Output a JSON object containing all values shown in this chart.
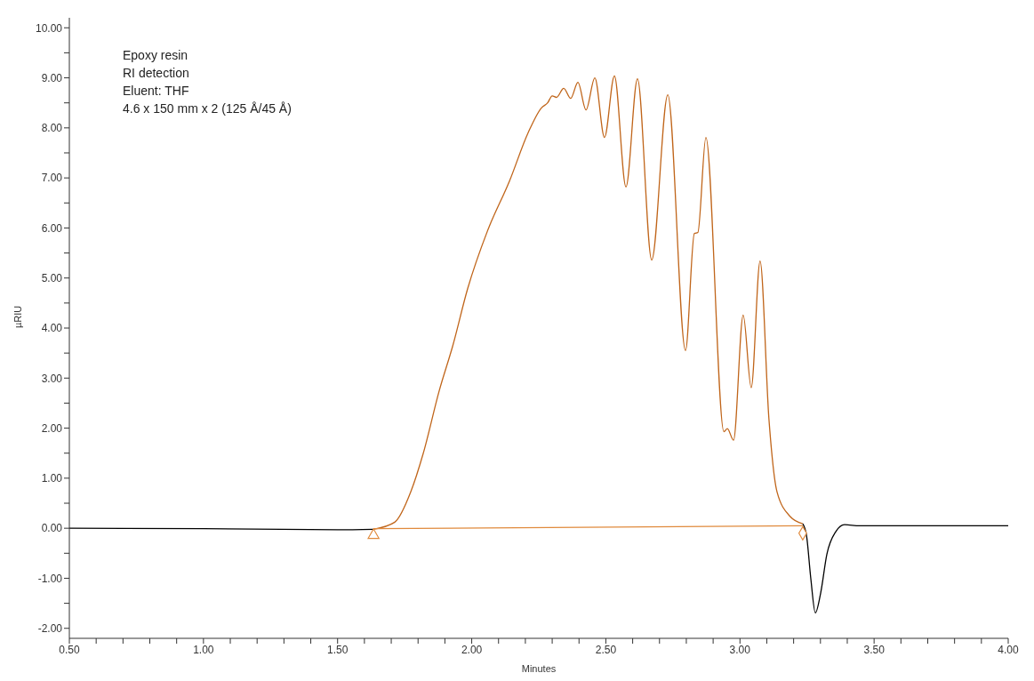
{
  "chart_data": {
    "type": "line",
    "xlabel": "Minutes",
    "ylabel": "µRIU",
    "annotations": [
      "Epoxy resin",
      "RI detection",
      "Eluent: THF",
      "4.6 x 150 mm x 2 (125 Å/45 Å)"
    ],
    "xlim": [
      0.5,
      4.0
    ],
    "ylim": [
      -2.2,
      10.2
    ],
    "xticks": [
      {
        "value": 0.5,
        "label": "0.50"
      },
      {
        "value": 0.6,
        "label": null
      },
      {
        "value": 0.7,
        "label": null
      },
      {
        "value": 0.8,
        "label": null
      },
      {
        "value": 0.9,
        "label": null
      },
      {
        "value": 1.0,
        "label": "1.00"
      },
      {
        "value": 1.1,
        "label": null
      },
      {
        "value": 1.2,
        "label": null
      },
      {
        "value": 1.3,
        "label": null
      },
      {
        "value": 1.4,
        "label": null
      },
      {
        "value": 1.5,
        "label": "1.50"
      },
      {
        "value": 1.6,
        "label": null
      },
      {
        "value": 1.7,
        "label": null
      },
      {
        "value": 1.8,
        "label": null
      },
      {
        "value": 1.9,
        "label": null
      },
      {
        "value": 2.0,
        "label": "2.00"
      },
      {
        "value": 2.1,
        "label": null
      },
      {
        "value": 2.2,
        "label": null
      },
      {
        "value": 2.3,
        "label": null
      },
      {
        "value": 2.4,
        "label": null
      },
      {
        "value": 2.5,
        "label": "2.50"
      },
      {
        "value": 2.6,
        "label": null
      },
      {
        "value": 2.7,
        "label": null
      },
      {
        "value": 2.8,
        "label": null
      },
      {
        "value": 2.9,
        "label": null
      },
      {
        "value": 3.0,
        "label": "3.00"
      },
      {
        "value": 3.1,
        "label": null
      },
      {
        "value": 3.2,
        "label": null
      },
      {
        "value": 3.3,
        "label": null
      },
      {
        "value": 3.4,
        "label": null
      },
      {
        "value": 3.5,
        "label": "3.50"
      },
      {
        "value": 3.6,
        "label": null
      },
      {
        "value": 3.7,
        "label": null
      },
      {
        "value": 3.8,
        "label": null
      },
      {
        "value": 3.9,
        "label": null
      },
      {
        "value": 4.0,
        "label": "4.00"
      }
    ],
    "yticks": [
      {
        "value": -2,
        "label": "-2.00"
      },
      {
        "value": -1.5,
        "label": null
      },
      {
        "value": -1,
        "label": "-1.00"
      },
      {
        "value": -0.5,
        "label": null
      },
      {
        "value": 0,
        "label": "0.00"
      },
      {
        "value": 0.5,
        "label": null
      },
      {
        "value": 1,
        "label": "1.00"
      },
      {
        "value": 1.5,
        "label": null
      },
      {
        "value": 2,
        "label": "2.00"
      },
      {
        "value": 2.5,
        "label": null
      },
      {
        "value": 3,
        "label": "3.00"
      },
      {
        "value": 3.5,
        "label": null
      },
      {
        "value": 4,
        "label": "4.00"
      },
      {
        "value": 4.5,
        "label": null
      },
      {
        "value": 5,
        "label": "5.00"
      },
      {
        "value": 5.5,
        "label": null
      },
      {
        "value": 6,
        "label": "6.00"
      },
      {
        "value": 6.5,
        "label": null
      },
      {
        "value": 7,
        "label": "7.00"
      },
      {
        "value": 7.5,
        "label": null
      },
      {
        "value": 8,
        "label": "8.00"
      },
      {
        "value": 8.5,
        "label": null
      },
      {
        "value": 9,
        "label": "9.00"
      },
      {
        "value": 9.5,
        "label": null
      },
      {
        "value": 10,
        "label": "10.00"
      }
    ],
    "grid": false,
    "marker": "none",
    "line_style": "solid",
    "series": [
      {
        "color": "#000000",
        "x": [
          0.5,
          1.0,
          1.5,
          1.634,
          1.7,
          3.234,
          3.248,
          3.264,
          3.281,
          3.301,
          3.324,
          3.357,
          3.39,
          3.446,
          4.0
        ],
        "values": [
          0.0,
          -0.01,
          -0.03,
          -0.02,
          null,
          0.09,
          -0.14,
          -1.0,
          -1.69,
          -1.29,
          -0.52,
          -0.07,
          0.07,
          0.05,
          0.05
        ]
      },
      {
        "color": "#c0651a",
        "x": [
          1.634,
          1.713,
          1.773,
          1.819,
          1.879,
          1.929,
          1.985,
          2.058,
          2.141,
          2.21,
          2.26,
          2.283,
          2.3,
          2.316,
          2.343,
          2.369,
          2.396,
          2.426,
          2.459,
          2.495,
          2.532,
          2.575,
          2.618,
          2.671,
          2.731,
          2.797,
          2.83,
          2.843,
          2.873,
          2.94,
          2.953,
          2.976,
          3.012,
          3.042,
          3.075,
          3.108,
          3.138,
          3.188,
          3.234
        ],
        "values": [
          -0.02,
          0.12,
          0.73,
          1.49,
          2.75,
          3.64,
          4.79,
          5.93,
          6.94,
          7.9,
          8.4,
          8.5,
          8.64,
          8.61,
          8.79,
          8.59,
          8.91,
          8.36,
          9.0,
          7.81,
          9.04,
          6.82,
          8.98,
          5.36,
          8.66,
          3.55,
          5.89,
          5.91,
          7.81,
          1.93,
          1.99,
          1.76,
          4.26,
          2.81,
          5.34,
          2.18,
          0.73,
          0.23,
          0.09
        ]
      },
      {
        "color": "#e08a3c",
        "x": [
          1.634,
          3.234
        ],
        "values": [
          -0.01,
          0.05
        ]
      },
      {
        "type": "scatter",
        "marker": "triangle",
        "color": "#e08a3c",
        "x": [
          1.634
        ],
        "values": [
          -0.14
        ]
      },
      {
        "type": "scatter",
        "marker": "diamond",
        "color": "#e08a3c",
        "x": [
          3.234
        ],
        "values": [
          -0.1
        ]
      }
    ]
  }
}
